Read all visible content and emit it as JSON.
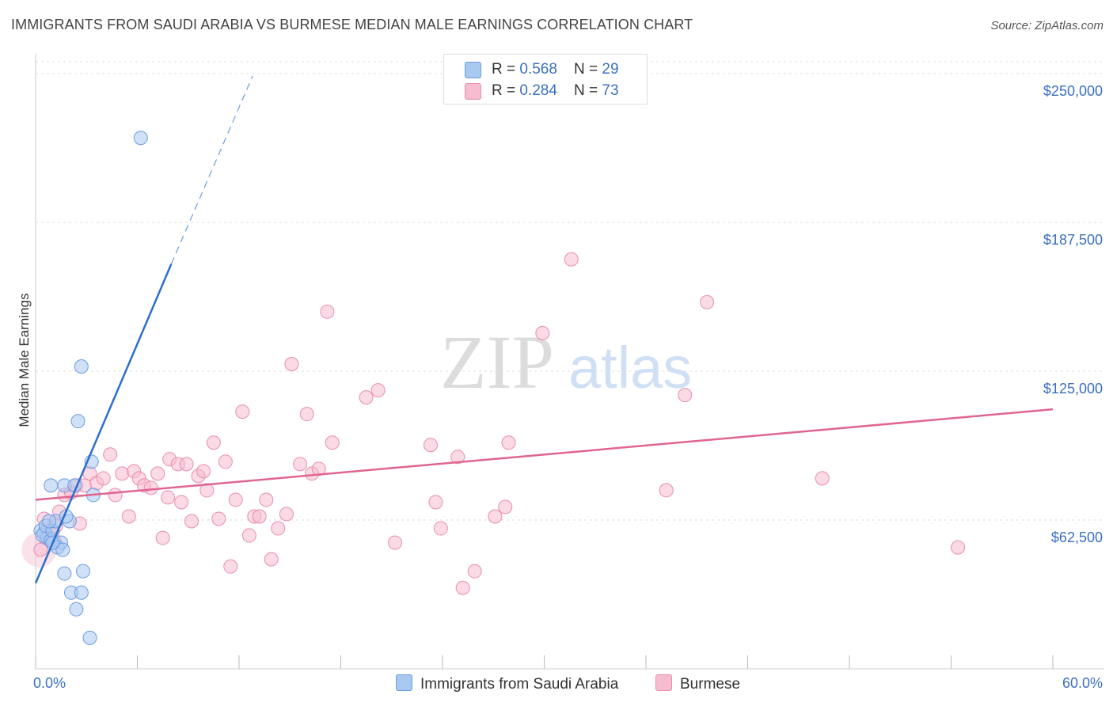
{
  "title": "IMMIGRANTS FROM SAUDI ARABIA VS BURMESE MEDIAN MALE EARNINGS CORRELATION CHART",
  "source": "Source: ZipAtlas.com",
  "watermark": {
    "zip": "ZIP",
    "atlas": "atlas"
  },
  "legend_top": {
    "row1": {
      "r_label": "R = ",
      "r_value": "0.568",
      "n_label": "N = ",
      "n_value": "29"
    },
    "row2": {
      "r_label": "R = ",
      "r_value": "0.284",
      "n_label": "N = ",
      "n_value": "73"
    }
  },
  "legend_bottom": {
    "item1": "Immigrants from Saudi Arabia",
    "item2": "Burmese"
  },
  "colors": {
    "blue_fill": "#a9c8f0",
    "blue_stroke": "#6a9de0",
    "blue_line": "#2a6fce",
    "pink_fill": "#f6bcd0",
    "pink_stroke": "#ea8db0",
    "pink_line": "#e0658f",
    "axis_text": "#3a6fc4",
    "grid": "#dddddd"
  },
  "chart_data": {
    "type": "scatter",
    "title": "IMMIGRANTS FROM SAUDI ARABIA VS BURMESE MEDIAN MALE EARNINGS CORRELATION CHART",
    "xlabel": "",
    "ylabel": "Median Male Earnings",
    "xlim": [
      0,
      60
    ],
    "ylim": [
      0,
      255000
    ],
    "x_tick_labels": {
      "min": "0.0%",
      "max": "60.0%"
    },
    "y_ticks": [
      {
        "value": 62500,
        "label": "$62,500"
      },
      {
        "value": 125000,
        "label": "$125,000"
      },
      {
        "value": 187500,
        "label": "$187,500"
      },
      {
        "value": 250000,
        "label": "$250,000"
      }
    ],
    "series": [
      {
        "name": "Immigrants from Saudi Arabia",
        "color": "#a9c8f0",
        "R": 0.568,
        "N": 29,
        "trend": {
          "x0": 0,
          "y0": 36000,
          "x1": 8,
          "y1": 170000,
          "dashed_x1": 12.8,
          "dashed_y1": 249000
        },
        "points": [
          [
            0.3,
            58000
          ],
          [
            0.5,
            57000
          ],
          [
            0.7,
            55000
          ],
          [
            0.4,
            56000
          ],
          [
            0.9,
            54000
          ],
          [
            0.6,
            60000
          ],
          [
            1.0,
            58000
          ],
          [
            1.2,
            62000
          ],
          [
            0.8,
            62000
          ],
          [
            1.5,
            53000
          ],
          [
            1.3,
            51000
          ],
          [
            1.6,
            50000
          ],
          [
            2.0,
            62000
          ],
          [
            1.8,
            64000
          ],
          [
            0.9,
            77000
          ],
          [
            1.7,
            77000
          ],
          [
            2.3,
            77000
          ],
          [
            3.3,
            87000
          ],
          [
            3.4,
            73000
          ],
          [
            2.5,
            104000
          ],
          [
            2.7,
            127000
          ],
          [
            1.7,
            40000
          ],
          [
            2.8,
            41000
          ],
          [
            2.1,
            32000
          ],
          [
            2.7,
            32000
          ],
          [
            2.4,
            25000
          ],
          [
            3.2,
            13000
          ],
          [
            6.2,
            223000
          ],
          [
            1.0,
            53000
          ]
        ]
      },
      {
        "name": "Burmese",
        "color": "#f6bcd0",
        "R": 0.284,
        "N": 73,
        "trend": {
          "x0": 0,
          "y0": 71000,
          "x1": 60,
          "y1": 109000
        },
        "points": [
          [
            0.3,
            50000
          ],
          [
            0.6,
            55000
          ],
          [
            0.9,
            58000
          ],
          [
            1.2,
            60000
          ],
          [
            1.4,
            66000
          ],
          [
            1.7,
            73000
          ],
          [
            2.1,
            74000
          ],
          [
            2.4,
            77000
          ],
          [
            2.6,
            61000
          ],
          [
            2.9,
            77000
          ],
          [
            3.2,
            82000
          ],
          [
            3.6,
            78000
          ],
          [
            4.0,
            80000
          ],
          [
            4.4,
            90000
          ],
          [
            4.7,
            73000
          ],
          [
            5.1,
            82000
          ],
          [
            5.5,
            64000
          ],
          [
            5.8,
            83000
          ],
          [
            6.1,
            80000
          ],
          [
            6.4,
            77000
          ],
          [
            6.8,
            76000
          ],
          [
            7.2,
            82000
          ],
          [
            7.5,
            55000
          ],
          [
            7.8,
            72000
          ],
          [
            7.9,
            88000
          ],
          [
            8.4,
            86000
          ],
          [
            8.6,
            70000
          ],
          [
            8.9,
            86000
          ],
          [
            9.2,
            62000
          ],
          [
            9.6,
            81000
          ],
          [
            9.9,
            83000
          ],
          [
            10.1,
            75000
          ],
          [
            10.5,
            95000
          ],
          [
            10.8,
            63000
          ],
          [
            11.2,
            87000
          ],
          [
            11.5,
            43000
          ],
          [
            11.8,
            71000
          ],
          [
            12.2,
            108000
          ],
          [
            12.6,
            56000
          ],
          [
            12.9,
            64000
          ],
          [
            13.2,
            64000
          ],
          [
            13.6,
            71000
          ],
          [
            13.9,
            46000
          ],
          [
            14.3,
            59000
          ],
          [
            14.8,
            65000
          ],
          [
            15.1,
            128000
          ],
          [
            15.6,
            86000
          ],
          [
            16.0,
            107000
          ],
          [
            16.3,
            82000
          ],
          [
            16.7,
            84000
          ],
          [
            17.2,
            150000
          ],
          [
            17.5,
            95000
          ],
          [
            19.5,
            114000
          ],
          [
            20.2,
            117000
          ],
          [
            21.2,
            53000
          ],
          [
            23.3,
            94000
          ],
          [
            23.6,
            70000
          ],
          [
            23.9,
            59000
          ],
          [
            24.9,
            89000
          ],
          [
            25.2,
            34000
          ],
          [
            25.9,
            41000
          ],
          [
            27.1,
            64000
          ],
          [
            27.7,
            68000
          ],
          [
            27.9,
            95000
          ],
          [
            29.9,
            141000
          ],
          [
            31.6,
            172000
          ],
          [
            37.2,
            75000
          ],
          [
            38.3,
            115000
          ],
          [
            39.6,
            154000
          ],
          [
            46.4,
            80000
          ],
          [
            54.4,
            51000
          ],
          [
            1.1,
            54000
          ],
          [
            0.5,
            63000
          ]
        ]
      }
    ]
  }
}
